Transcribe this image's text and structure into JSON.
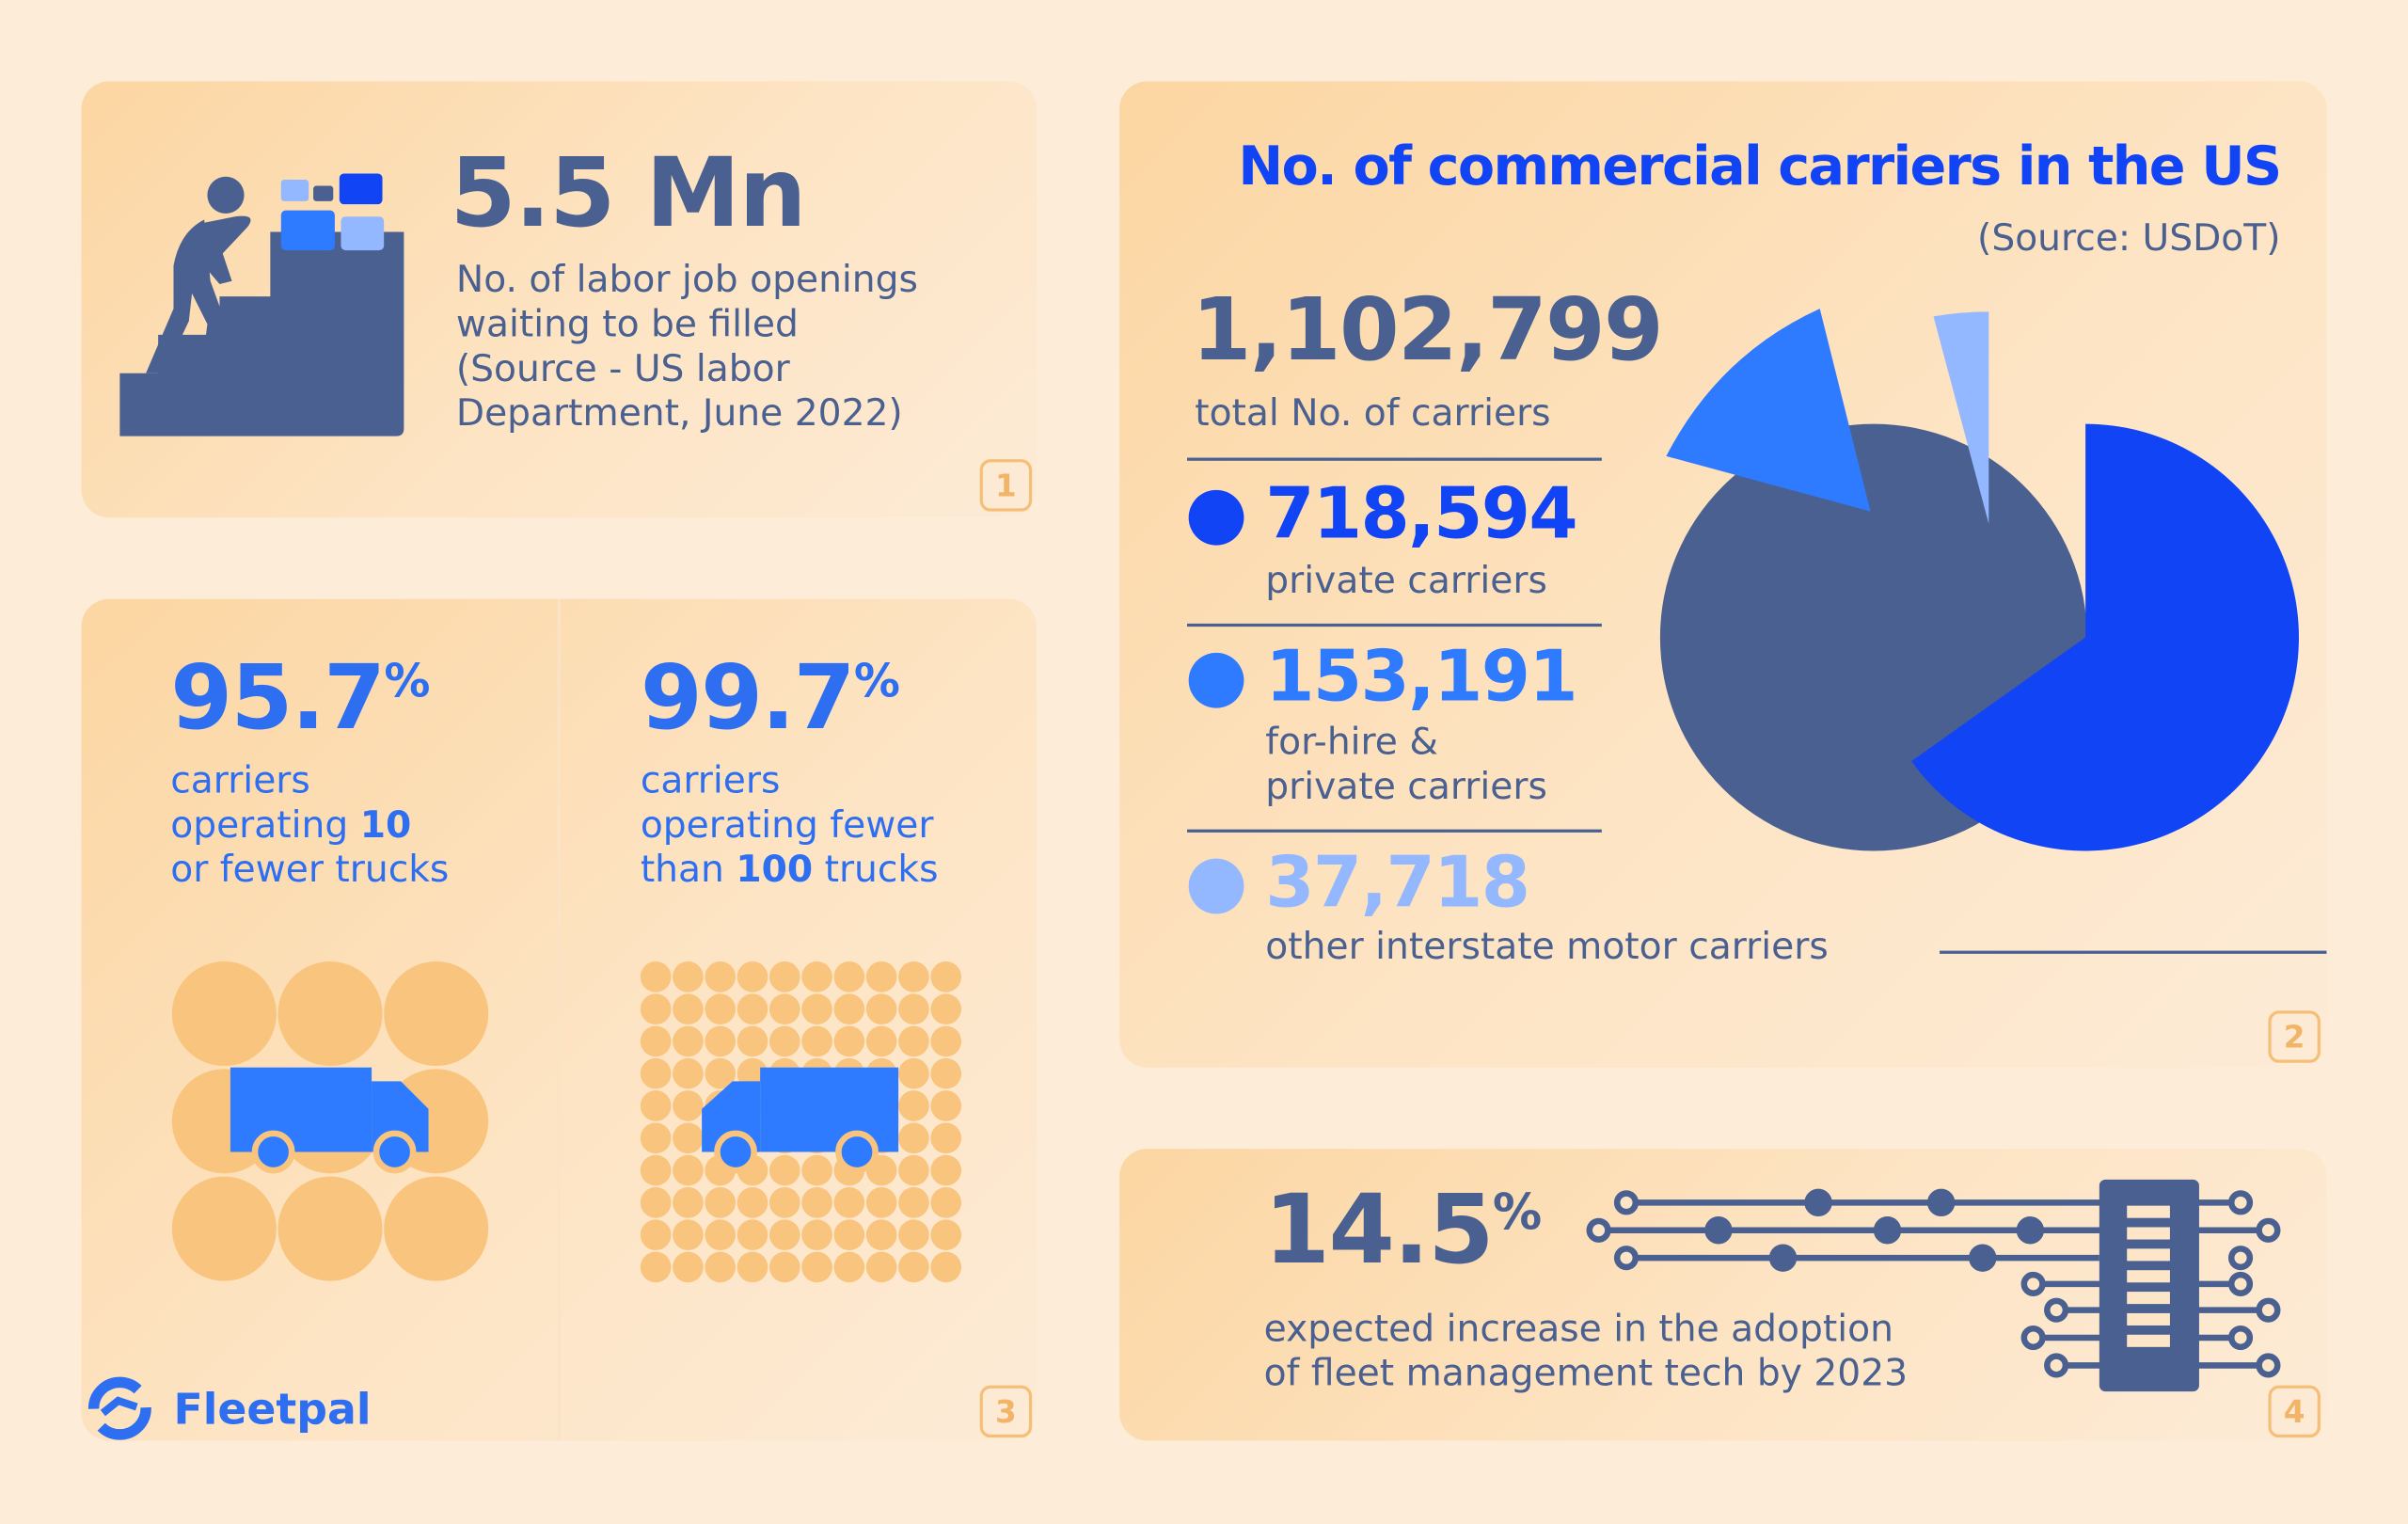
{
  "colors": {
    "slate": "#4a6090",
    "blue": "#1144f5",
    "mid_blue": "#2e7bff",
    "light_blue": "#93b8ff",
    "orange": "#f5bf78"
  },
  "card1": {
    "value": "5.5 Mn",
    "desc_line1": "No. of labor job openings",
    "desc_line2": "waiting to be filled",
    "source_line1": "(Source - US labor",
    "source_line2": "Department, June 2022)",
    "badge": "1",
    "icon": "person-climbing-stairs-to-briefcases-icon"
  },
  "card2": {
    "title": "No. of commercial carriers in the US",
    "source": "(Source: USDoT)",
    "total_value": "1,102,799",
    "total_label": "total No. of carriers",
    "items": [
      {
        "value": "718,594",
        "label_line1": "private carriers",
        "label_line2": "",
        "color": "#1144f5"
      },
      {
        "value": "153,191",
        "label_line1": "for-hire &",
        "label_line2": "private carriers",
        "color": "#2e7bff"
      },
      {
        "value": "37,718",
        "label_line1": "other interstate motor carriers",
        "label_line2": "",
        "color": "#93b8ff"
      }
    ],
    "badge": "2"
  },
  "card3": {
    "left": {
      "value": "95.7",
      "suffix": "%",
      "line1": "carriers",
      "line2a": "operating ",
      "line2b": "10",
      "line3": "or fewer trucks"
    },
    "right": {
      "value": "99.7",
      "suffix": "%",
      "line1": "carriers",
      "line2": "operating fewer",
      "line3a": "than ",
      "line3b": "100",
      "line3c": " trucks"
    },
    "brand": "Fleetpal",
    "badge": "3"
  },
  "card4": {
    "value": "14.5",
    "suffix": "%",
    "line1": "expected increase in the adoption",
    "line2": "of fleet management tech by 2023",
    "badge": "4",
    "icon": "circuit-chip-icon"
  }
}
